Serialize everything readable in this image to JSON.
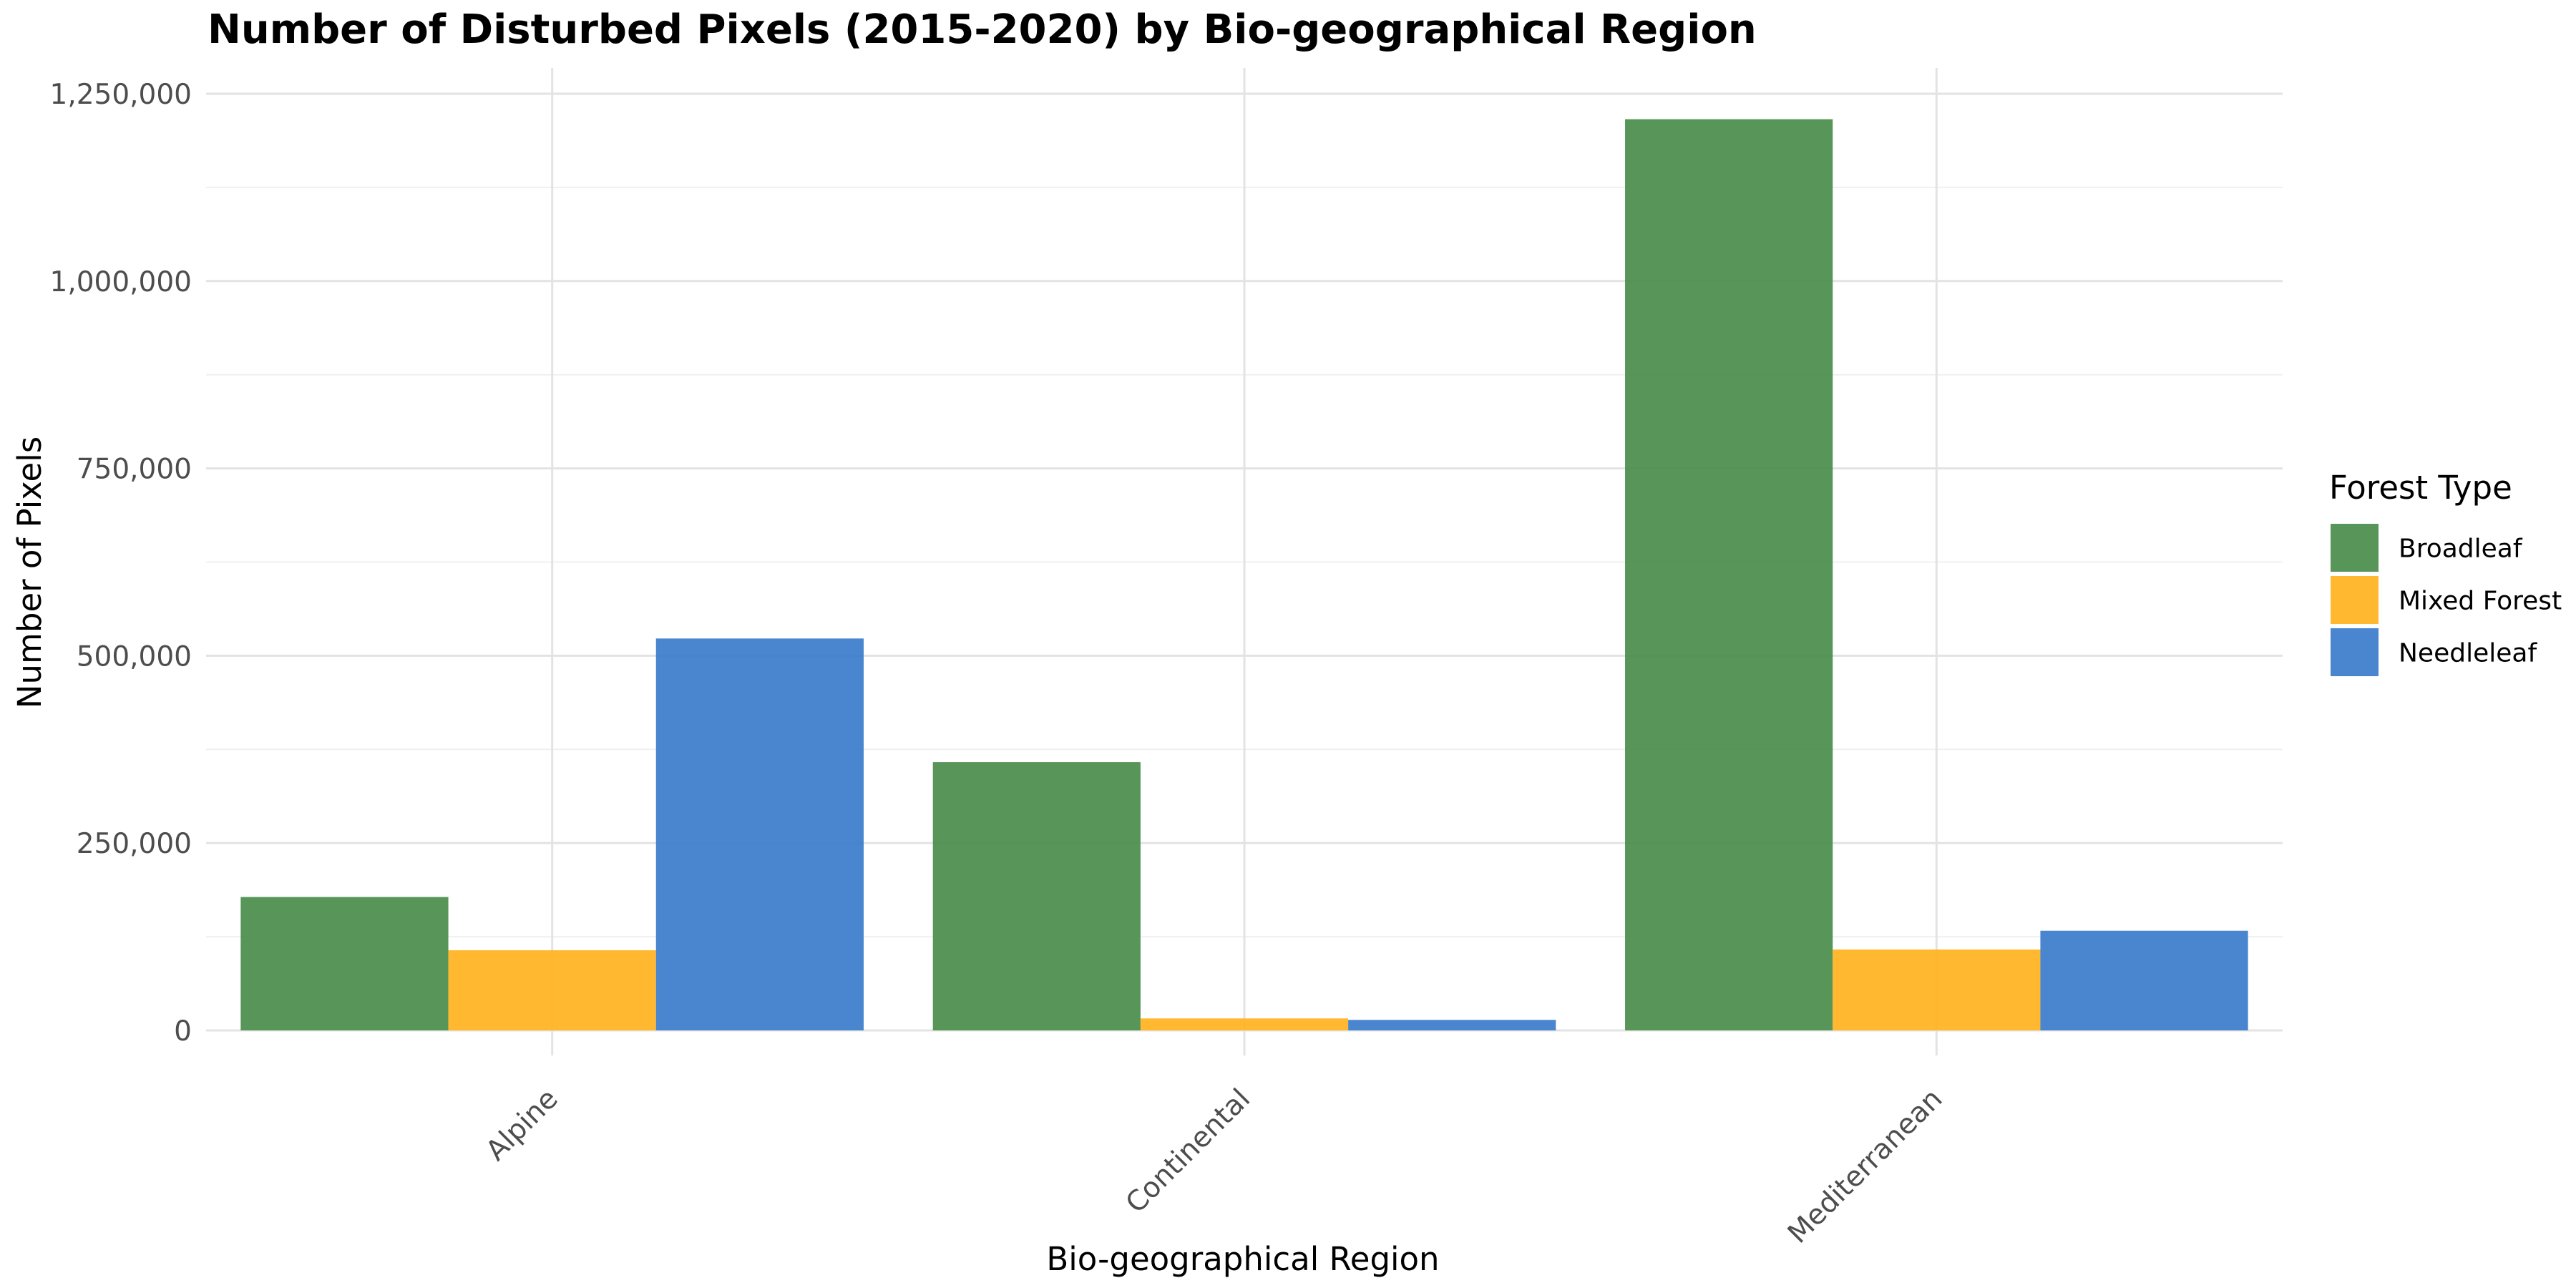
{
  "chart_data": {
    "type": "bar",
    "title": "Number of Disturbed Pixels (2015-2020) by Bio-geographical Region",
    "xlabel": "Bio-geographical Region",
    "ylabel": "Number of Pixels",
    "categories": [
      "Alpine",
      "Continental",
      "Mediterranean"
    ],
    "series": [
      {
        "name": "Broadleaf",
        "color": "#4a8c4a",
        "values": [
          178000,
          358000,
          1216000
        ]
      },
      {
        "name": "Mixed Forest",
        "color": "#ffb21e",
        "values": [
          107000,
          16000,
          108000
        ]
      },
      {
        "name": "Needleleaf",
        "color": "#3a7ccb",
        "values": [
          523000,
          14000,
          133000
        ]
      }
    ],
    "ylim": [
      0,
      1250000
    ],
    "yticks": [
      0,
      250000,
      500000,
      750000,
      1000000,
      1250000
    ],
    "ytick_labels": [
      "0",
      "250,000",
      "500,000",
      "750,000",
      "1,000,000",
      "1,250,000"
    ],
    "legend": {
      "title": "Forest Type",
      "position": "right"
    },
    "grid": true
  }
}
